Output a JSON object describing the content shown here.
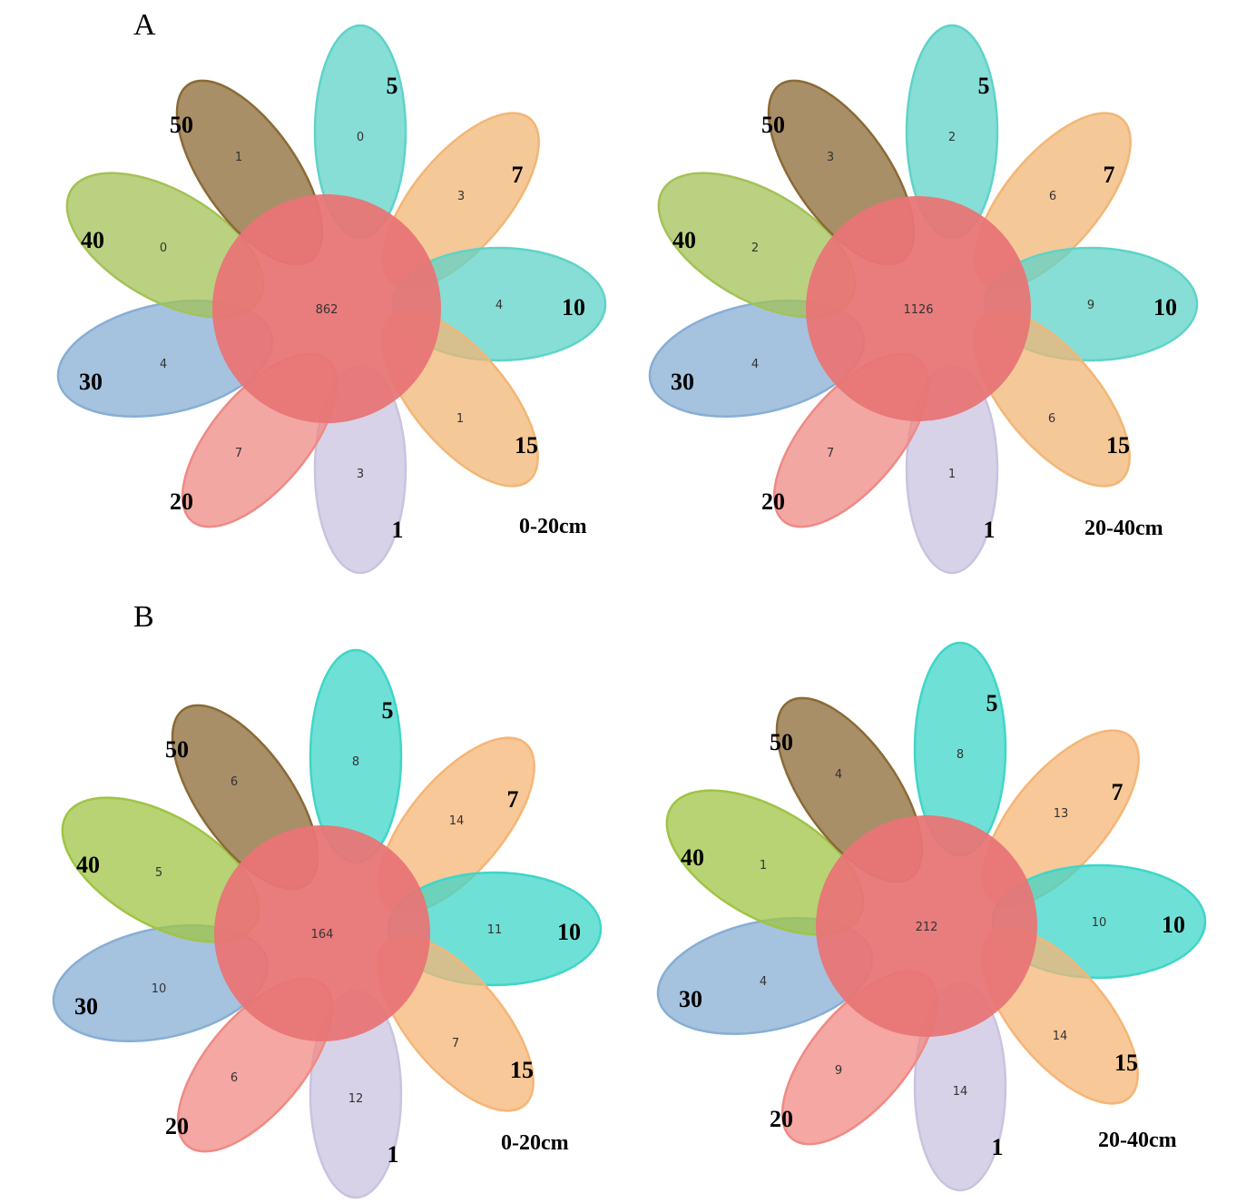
{
  "panels": [
    {
      "letter": "A"
    },
    {
      "letter": "B"
    }
  ],
  "diagrams": [
    {
      "panel": "A",
      "depth": "0-20cm",
      "core": "862",
      "petals": [
        {
          "group": "5",
          "count": "0",
          "color": "#5fd3c8"
        },
        {
          "group": "7",
          "count": "3",
          "color": "#f2b676"
        },
        {
          "group": "10",
          "count": "4",
          "color": "#5fd3c8"
        },
        {
          "group": "15",
          "count": "1",
          "color": "#f2b676"
        },
        {
          "group": "1",
          "count": "3",
          "color": "#c9c3e0"
        },
        {
          "group": "20",
          "count": "7",
          "color": "#ee8a84"
        },
        {
          "group": "30",
          "count": "4",
          "color": "#87aed4"
        },
        {
          "group": "40",
          "count": "0",
          "color": "#a3c257"
        },
        {
          "group": "50",
          "count": "1",
          "color": "#8b6a35"
        }
      ]
    },
    {
      "panel": "A",
      "depth": "20-40cm",
      "core": "1126",
      "petals": [
        {
          "group": "5",
          "count": "2",
          "color": "#5fd3c8"
        },
        {
          "group": "7",
          "count": "6",
          "color": "#f2b676"
        },
        {
          "group": "10",
          "count": "9",
          "color": "#5fd3c8"
        },
        {
          "group": "15",
          "count": "6",
          "color": "#f2b676"
        },
        {
          "group": "1",
          "count": "1",
          "color": "#c9c3e0"
        },
        {
          "group": "20",
          "count": "7",
          "color": "#ee8a84"
        },
        {
          "group": "30",
          "count": "4",
          "color": "#87aed4"
        },
        {
          "group": "40",
          "count": "2",
          "color": "#a3c257"
        },
        {
          "group": "50",
          "count": "3",
          "color": "#8b6a35"
        }
      ]
    },
    {
      "panel": "B",
      "depth": "0-20cm",
      "core": "164",
      "petals": [
        {
          "group": "5",
          "count": "8",
          "color": "#3fd6c8"
        },
        {
          "group": "7",
          "count": "14",
          "color": "#f6b576"
        },
        {
          "group": "10",
          "count": "11",
          "color": "#3fd6c8"
        },
        {
          "group": "15",
          "count": "7",
          "color": "#f6b576"
        },
        {
          "group": "1",
          "count": "12",
          "color": "#c9c3e0"
        },
        {
          "group": "20",
          "count": "6",
          "color": "#f08a84"
        },
        {
          "group": "30",
          "count": "10",
          "color": "#87aed4"
        },
        {
          "group": "40",
          "count": "5",
          "color": "#9fc445"
        },
        {
          "group": "50",
          "count": "6",
          "color": "#8b6a35"
        }
      ]
    },
    {
      "panel": "B",
      "depth": "20-40cm",
      "core": "212",
      "petals": [
        {
          "group": "5",
          "count": "8",
          "color": "#3fd6c8"
        },
        {
          "group": "7",
          "count": "13",
          "color": "#f6b576"
        },
        {
          "group": "10",
          "count": "10",
          "color": "#3fd6c8"
        },
        {
          "group": "15",
          "count": "14",
          "color": "#f6b576"
        },
        {
          "group": "1",
          "count": "14",
          "color": "#c9c3e0"
        },
        {
          "group": "20",
          "count": "9",
          "color": "#f08a84"
        },
        {
          "group": "30",
          "count": "4",
          "color": "#87aed4"
        },
        {
          "group": "40",
          "count": "1",
          "color": "#9fc445"
        },
        {
          "group": "50",
          "count": "4",
          "color": "#8b6a35"
        }
      ]
    }
  ],
  "core_color": "#e87576"
}
